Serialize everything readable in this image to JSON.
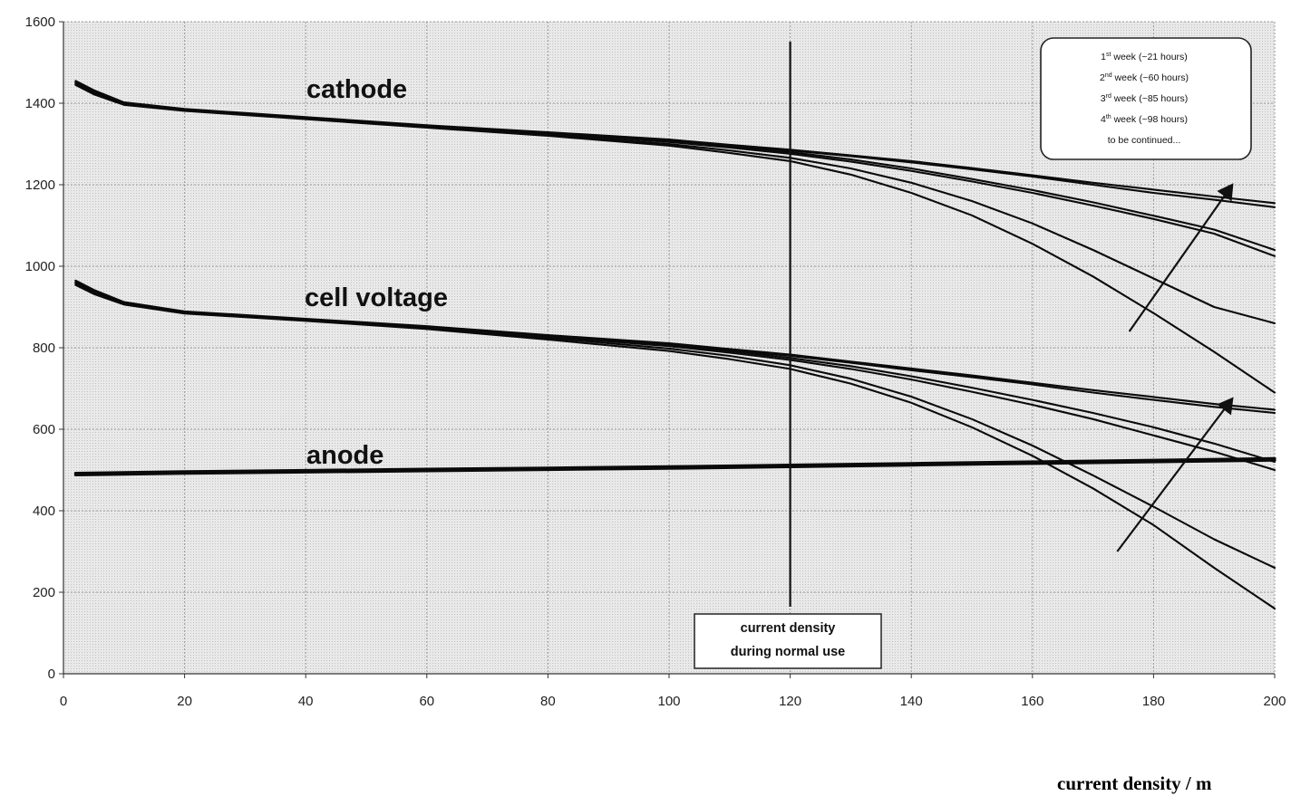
{
  "chart_data": {
    "type": "line",
    "title": "",
    "xlabel": "current density / m",
    "ylabel": "",
    "xlim": [
      0,
      200
    ],
    "ylim": [
      0,
      1600
    ],
    "x_ticks": [
      0,
      20,
      40,
      60,
      80,
      100,
      120,
      140,
      160,
      180,
      200
    ],
    "y_ticks": [
      0,
      200,
      400,
      600,
      800,
      1000,
      1200,
      1400,
      1600
    ],
    "grid": true,
    "legend_position": "top-right",
    "legend_lines": [
      {
        "ord": "1",
        "sup": "st",
        "rest": " week (~21 hours)"
      },
      {
        "ord": "2",
        "sup": "nd",
        "rest": " week (~60 hours)"
      },
      {
        "ord": "3",
        "sup": "rd",
        "rest": " week (~85 hours)"
      },
      {
        "ord": "4",
        "sup": "th",
        "rest": " week (~98 hours)"
      },
      {
        "ord": "",
        "sup": "",
        "rest": "to be continued..."
      }
    ],
    "curve_labels": {
      "cathode": "cathode",
      "cell_voltage": "cell voltage",
      "anode": "anode"
    },
    "annotation": {
      "x": 120,
      "lines": [
        "current density",
        "during normal use"
      ]
    },
    "arrows": [
      {
        "from": [
          176,
          840
        ],
        "to": [
          193,
          1200
        ]
      },
      {
        "from": [
          174,
          300
        ],
        "to": [
          193,
          675
        ]
      }
    ],
    "series": [
      {
        "group": "cathode",
        "x": [
          2,
          5,
          10,
          20,
          40,
          60,
          80,
          100,
          110,
          120,
          130,
          140,
          150,
          160,
          170,
          180,
          190,
          200
        ],
        "values": [
          1450,
          1430,
          1400,
          1385,
          1365,
          1345,
          1328,
          1310,
          1297,
          1284,
          1270,
          1255,
          1238,
          1220,
          1200,
          1180,
          1163,
          1145
        ]
      },
      {
        "group": "cathode",
        "x": [
          2,
          5,
          10,
          20,
          40,
          60,
          80,
          100,
          110,
          120,
          130,
          140,
          150,
          160,
          170,
          180,
          190,
          200
        ],
        "values": [
          1455,
          1432,
          1402,
          1386,
          1366,
          1346,
          1329,
          1311,
          1298,
          1286,
          1272,
          1258,
          1241,
          1223,
          1205,
          1188,
          1171,
          1155
        ]
      },
      {
        "group": "cathode",
        "x": [
          2,
          5,
          10,
          20,
          40,
          60,
          80,
          100,
          110,
          120,
          130,
          140,
          150,
          160,
          170,
          180,
          190,
          200
        ],
        "values": [
          1452,
          1428,
          1399,
          1384,
          1364,
          1344,
          1326,
          1307,
          1294,
          1280,
          1262,
          1240,
          1214,
          1187,
          1157,
          1124,
          1090,
          1040
        ]
      },
      {
        "group": "cathode",
        "x": [
          2,
          5,
          10,
          20,
          40,
          60,
          80,
          100,
          110,
          120,
          130,
          140,
          150,
          160,
          170,
          180,
          190,
          200
        ],
        "values": [
          1448,
          1426,
          1398,
          1383,
          1363,
          1343,
          1325,
          1305,
          1291,
          1276,
          1257,
          1234,
          1208,
          1180,
          1149,
          1116,
          1080,
          1025
        ]
      },
      {
        "group": "cathode",
        "x": [
          2,
          5,
          10,
          20,
          40,
          60,
          80,
          100,
          110,
          120,
          130,
          140,
          150,
          160,
          170,
          180,
          190,
          200
        ],
        "values": [
          1446,
          1424,
          1397,
          1382,
          1362,
          1341,
          1322,
          1300,
          1284,
          1266,
          1240,
          1205,
          1160,
          1105,
          1040,
          970,
          900,
          860
        ]
      },
      {
        "group": "cathode",
        "x": [
          2,
          5,
          10,
          20,
          40,
          60,
          80,
          100,
          110,
          120,
          130,
          140,
          150,
          160,
          170,
          180,
          190,
          200
        ],
        "values": [
          1445,
          1422,
          1396,
          1381,
          1361,
          1340,
          1320,
          1296,
          1278,
          1258,
          1225,
          1180,
          1125,
          1055,
          975,
          885,
          790,
          690
        ]
      },
      {
        "group": "cell_voltage",
        "x": [
          2,
          5,
          10,
          20,
          40,
          60,
          80,
          100,
          110,
          120,
          130,
          140,
          150,
          160,
          170,
          180,
          190,
          200
        ],
        "values": [
          960,
          940,
          910,
          888,
          870,
          852,
          830,
          810,
          795,
          780,
          763,
          745,
          728,
          710,
          690,
          672,
          655,
          640
        ]
      },
      {
        "group": "cell_voltage",
        "x": [
          2,
          5,
          10,
          20,
          40,
          60,
          80,
          100,
          110,
          120,
          130,
          140,
          150,
          160,
          170,
          180,
          190,
          200
        ],
        "values": [
          965,
          942,
          912,
          889,
          871,
          853,
          831,
          811,
          797,
          783,
          766,
          749,
          732,
          714,
          696,
          679,
          662,
          648
        ]
      },
      {
        "group": "cell_voltage",
        "x": [
          2,
          5,
          10,
          20,
          40,
          60,
          80,
          100,
          110,
          120,
          130,
          140,
          150,
          160,
          170,
          180,
          190,
          200
        ],
        "values": [
          962,
          938,
          909,
          887,
          869,
          851,
          829,
          807,
          792,
          775,
          755,
          730,
          702,
          672,
          640,
          605,
          565,
          520
        ]
      },
      {
        "group": "cell_voltage",
        "x": [
          2,
          5,
          10,
          20,
          40,
          60,
          80,
          100,
          110,
          120,
          130,
          140,
          150,
          160,
          170,
          180,
          190,
          200
        ],
        "values": [
          958,
          936,
          908,
          886,
          868,
          850,
          827,
          804,
          788,
          770,
          748,
          722,
          692,
          660,
          625,
          585,
          545,
          500
        ]
      },
      {
        "group": "cell_voltage",
        "x": [
          2,
          5,
          10,
          20,
          40,
          60,
          80,
          100,
          110,
          120,
          130,
          140,
          150,
          160,
          170,
          180,
          190,
          200
        ],
        "values": [
          956,
          934,
          907,
          885,
          867,
          848,
          824,
          798,
          780,
          757,
          724,
          680,
          625,
          560,
          487,
          410,
          330,
          260
        ]
      },
      {
        "group": "cell_voltage",
        "x": [
          2,
          5,
          10,
          20,
          40,
          60,
          80,
          100,
          110,
          120,
          130,
          140,
          150,
          160,
          170,
          180,
          190,
          200
        ],
        "values": [
          954,
          932,
          906,
          884,
          866,
          846,
          820,
          792,
          772,
          748,
          712,
          665,
          605,
          535,
          455,
          365,
          260,
          160
        ]
      },
      {
        "group": "anode",
        "x": [
          2,
          20,
          40,
          60,
          80,
          100,
          120,
          140,
          160,
          180,
          200
        ],
        "values": [
          488,
          492,
          495,
          498,
          501,
          504,
          508,
          512,
          516,
          520,
          524
        ]
      },
      {
        "group": "anode",
        "x": [
          2,
          20,
          40,
          60,
          80,
          100,
          120,
          140,
          160,
          180,
          200
        ],
        "values": [
          492,
          496,
          499,
          502,
          505,
          508,
          512,
          516,
          520,
          524,
          528
        ]
      }
    ]
  }
}
